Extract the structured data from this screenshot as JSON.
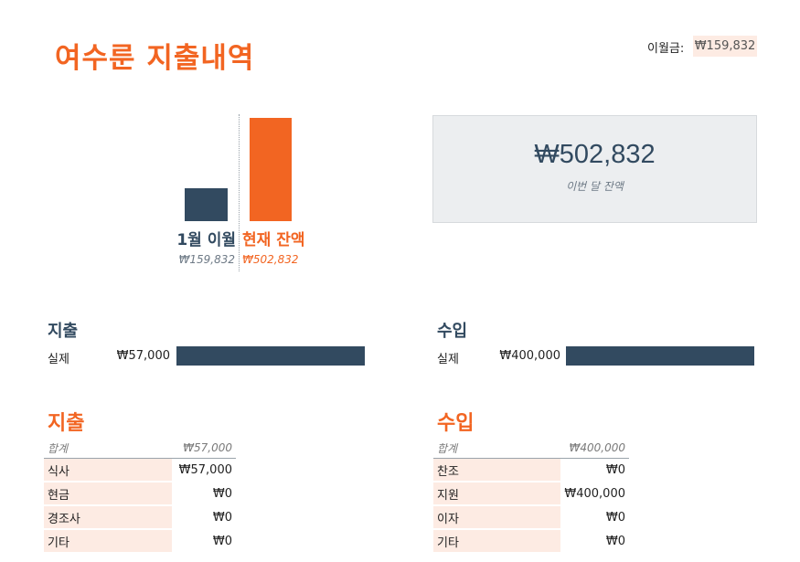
{
  "title": "여수룬 지출내역",
  "carryover": {
    "label": "이월금:",
    "value": "₩159,832"
  },
  "comparison": {
    "previous": {
      "label": "1월 이월",
      "value": "₩159,832"
    },
    "current": {
      "label": "현재 잔액",
      "value": "₩502,832"
    }
  },
  "balance": {
    "amount": "₩502,832",
    "caption": "이번 달 잔액"
  },
  "expense_summary": {
    "heading": "지출",
    "row_label": "실제",
    "row_value": "₩57,000"
  },
  "income_summary": {
    "heading": "수입",
    "row_label": "실제",
    "row_value": "₩400,000"
  },
  "expense_table": {
    "heading": "지출",
    "total_label": "합계",
    "total_value": "₩57,000",
    "rows": [
      {
        "category": "식사",
        "amount": "₩57,000"
      },
      {
        "category": "현금",
        "amount": "₩0"
      },
      {
        "category": "경조사",
        "amount": "₩0"
      },
      {
        "category": "기타",
        "amount": "₩0"
      }
    ]
  },
  "income_table": {
    "heading": "수입",
    "total_label": "합계",
    "total_value": "₩400,000",
    "rows": [
      {
        "category": "찬조",
        "amount": "₩0"
      },
      {
        "category": "지원",
        "amount": "₩400,000"
      },
      {
        "category": "이자",
        "amount": "₩0"
      },
      {
        "category": "기타",
        "amount": "₩0"
      }
    ]
  },
  "colors": {
    "accent": "#f26522",
    "navy": "#324a60",
    "peach": "#fdebe3",
    "panel": "#eceef0"
  }
}
